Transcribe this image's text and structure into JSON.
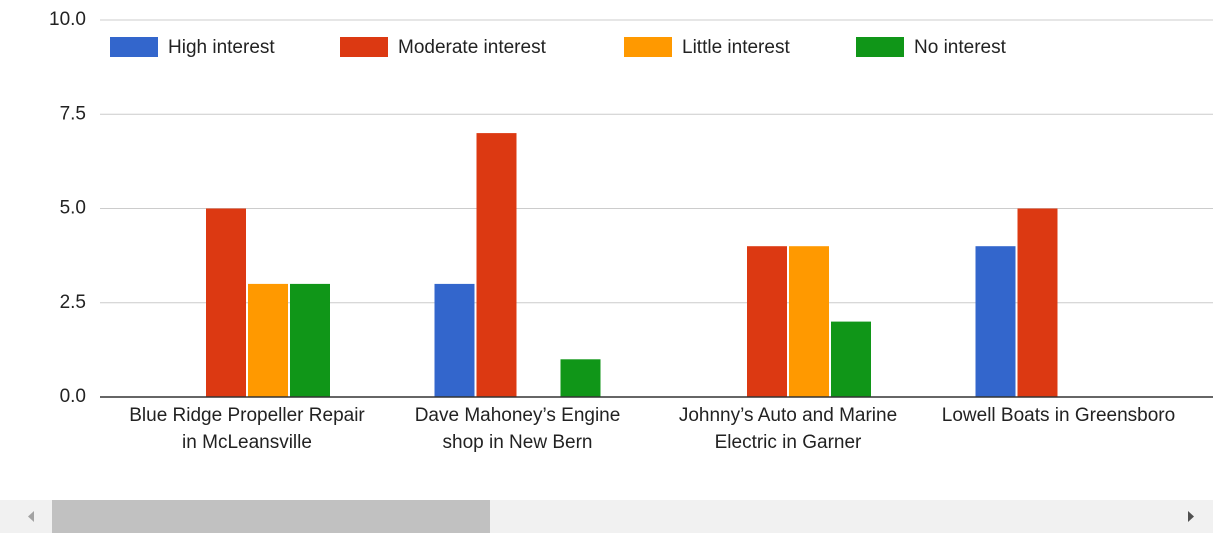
{
  "chart_data": {
    "type": "bar",
    "categories": [
      "Blue Ridge Propeller Repair in McLeansville",
      "Dave Mahoney’s Engine shop in New Bern",
      "Johnny’s Auto and Marine Electric in Garner",
      "Lowell Boats in Greensboro"
    ],
    "series": [
      {
        "name": "High interest",
        "color": "#3366cc",
        "values": [
          0,
          3,
          0,
          4
        ]
      },
      {
        "name": "Moderate interest",
        "color": "#dc3912",
        "values": [
          5,
          7,
          4,
          5
        ]
      },
      {
        "name": "Little interest",
        "color": "#ff9900",
        "values": [
          3,
          0,
          4,
          0
        ]
      },
      {
        "name": "No interest",
        "color": "#109618",
        "values": [
          3,
          1,
          2,
          0
        ]
      }
    ],
    "ylim": [
      0,
      10
    ],
    "yticks": [
      {
        "value": 0,
        "label": "0.0"
      },
      {
        "value": 2.5,
        "label": "2.5"
      },
      {
        "value": 5,
        "label": "5.0"
      },
      {
        "value": 7.5,
        "label": "7.5"
      },
      {
        "value": 10,
        "label": "10.0"
      }
    ],
    "grid": true,
    "legend": "top"
  }
}
